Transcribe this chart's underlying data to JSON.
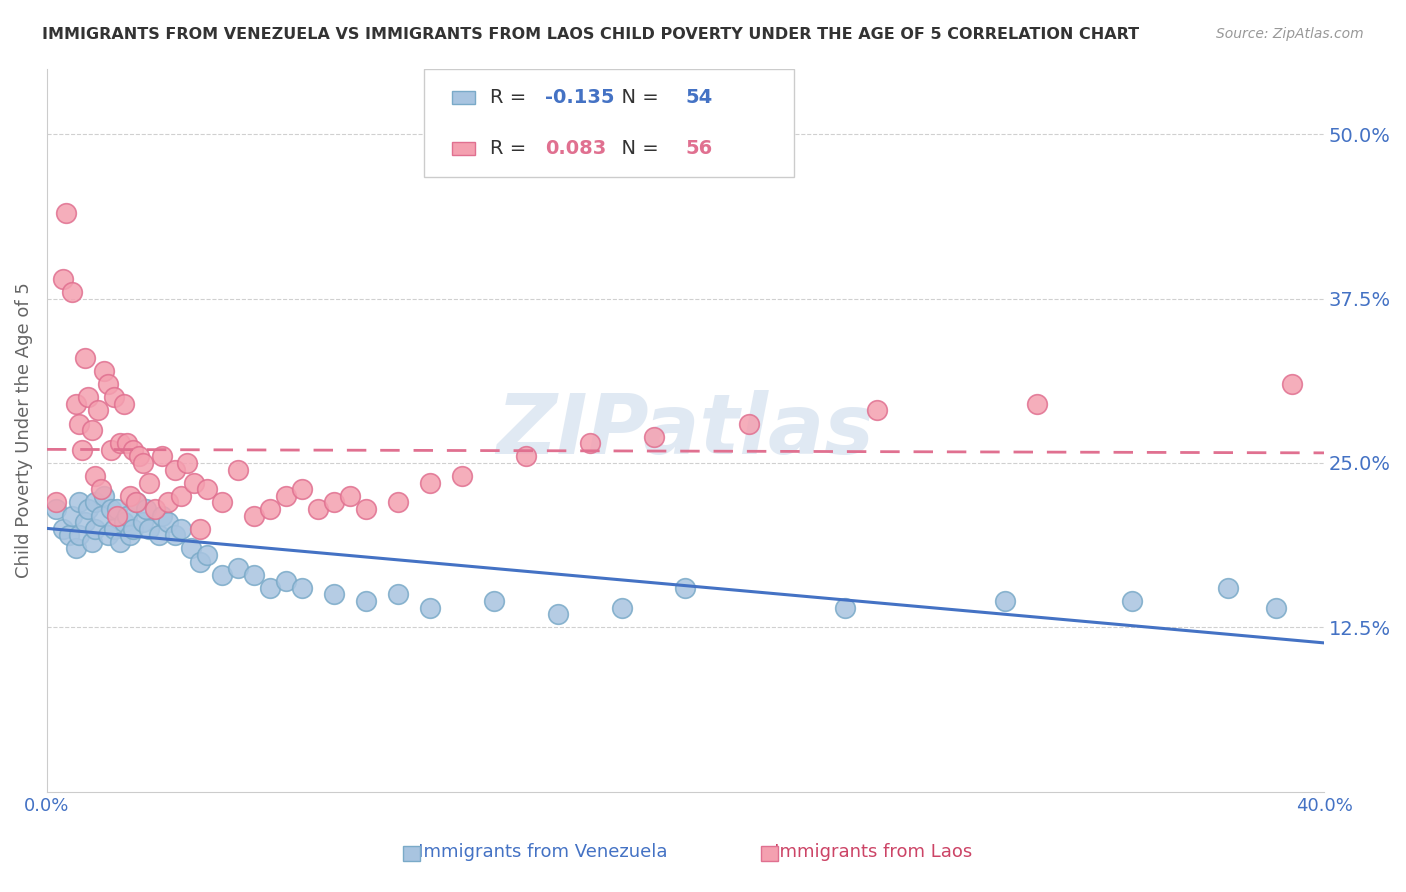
{
  "title": "IMMIGRANTS FROM VENEZUELA VS IMMIGRANTS FROM LAOS CHILD POVERTY UNDER THE AGE OF 5 CORRELATION CHART",
  "source": "Source: ZipAtlas.com",
  "ylabel": "Child Poverty Under the Age of 5",
  "ytick_labels": [
    "50.0%",
    "37.5%",
    "25.0%",
    "12.5%"
  ],
  "ytick_values": [
    0.5,
    0.375,
    0.25,
    0.125
  ],
  "xmin": 0.0,
  "xmax": 0.4,
  "ymin": 0.0,
  "ymax": 0.55,
  "venezuela_color": "#a8c4e0",
  "venezuela_edge_color": "#7aaac8",
  "laos_color": "#f4a0b0",
  "laos_edge_color": "#e07090",
  "venezuela_line_color": "#4472c4",
  "laos_line_color": "#e07090",
  "venezuela_R": -0.135,
  "venezuela_N": 54,
  "laos_R": 0.083,
  "laos_N": 56,
  "venezuela_scatter_x": [
    0.003,
    0.005,
    0.007,
    0.008,
    0.009,
    0.01,
    0.01,
    0.012,
    0.013,
    0.014,
    0.015,
    0.015,
    0.017,
    0.018,
    0.019,
    0.02,
    0.021,
    0.022,
    0.023,
    0.024,
    0.025,
    0.026,
    0.027,
    0.028,
    0.03,
    0.031,
    0.032,
    0.035,
    0.036,
    0.038,
    0.04,
    0.042,
    0.045,
    0.048,
    0.05,
    0.055,
    0.06,
    0.065,
    0.07,
    0.075,
    0.08,
    0.09,
    0.1,
    0.11,
    0.12,
    0.14,
    0.16,
    0.18,
    0.2,
    0.25,
    0.3,
    0.34,
    0.37,
    0.385
  ],
  "venezuela_scatter_y": [
    0.215,
    0.2,
    0.195,
    0.21,
    0.185,
    0.22,
    0.195,
    0.205,
    0.215,
    0.19,
    0.22,
    0.2,
    0.21,
    0.225,
    0.195,
    0.215,
    0.2,
    0.215,
    0.19,
    0.205,
    0.21,
    0.195,
    0.2,
    0.22,
    0.205,
    0.215,
    0.2,
    0.195,
    0.21,
    0.205,
    0.195,
    0.2,
    0.185,
    0.175,
    0.18,
    0.165,
    0.17,
    0.165,
    0.155,
    0.16,
    0.155,
    0.15,
    0.145,
    0.15,
    0.14,
    0.145,
    0.135,
    0.14,
    0.155,
    0.14,
    0.145,
    0.145,
    0.155,
    0.14
  ],
  "laos_scatter_x": [
    0.003,
    0.005,
    0.006,
    0.008,
    0.009,
    0.01,
    0.011,
    0.012,
    0.013,
    0.014,
    0.015,
    0.016,
    0.017,
    0.018,
    0.019,
    0.02,
    0.021,
    0.022,
    0.023,
    0.024,
    0.025,
    0.026,
    0.027,
    0.028,
    0.029,
    0.03,
    0.032,
    0.034,
    0.036,
    0.038,
    0.04,
    0.042,
    0.044,
    0.046,
    0.048,
    0.05,
    0.055,
    0.06,
    0.065,
    0.07,
    0.075,
    0.08,
    0.085,
    0.09,
    0.095,
    0.1,
    0.11,
    0.12,
    0.13,
    0.15,
    0.17,
    0.19,
    0.22,
    0.26,
    0.31,
    0.39
  ],
  "laos_scatter_y": [
    0.22,
    0.39,
    0.44,
    0.38,
    0.295,
    0.28,
    0.26,
    0.33,
    0.3,
    0.275,
    0.24,
    0.29,
    0.23,
    0.32,
    0.31,
    0.26,
    0.3,
    0.21,
    0.265,
    0.295,
    0.265,
    0.225,
    0.26,
    0.22,
    0.255,
    0.25,
    0.235,
    0.215,
    0.255,
    0.22,
    0.245,
    0.225,
    0.25,
    0.235,
    0.2,
    0.23,
    0.22,
    0.245,
    0.21,
    0.215,
    0.225,
    0.23,
    0.215,
    0.22,
    0.225,
    0.215,
    0.22,
    0.235,
    0.24,
    0.255,
    0.265,
    0.27,
    0.28,
    0.29,
    0.295,
    0.31
  ],
  "watermark_text": "ZIPatlas",
  "watermark_color": "#c8d8ea",
  "grid_color": "#d0d0d0",
  "background_color": "#ffffff",
  "title_color": "#333333",
  "axis_label_color": "#4472c4"
}
